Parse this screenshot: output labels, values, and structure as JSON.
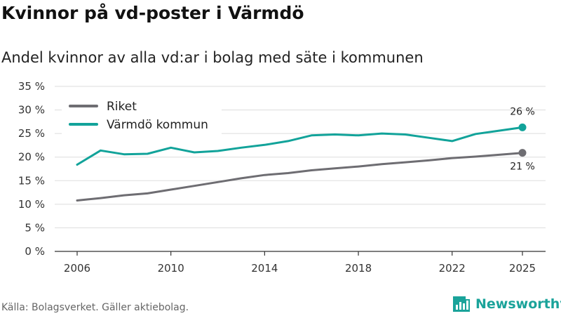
{
  "header": {
    "title": "Kvinnor på vd-poster i Värmdö",
    "subtitle": "Andel kvinnor av alla vd:ar i bolag med säte i kommunen"
  },
  "footer": {
    "source": "Källa: Bolagsverket. Gäller aktiebolag."
  },
  "brand": {
    "name": "Newsworthy"
  },
  "colors": {
    "riket": "#6e6d72",
    "varmdo": "#12a39a",
    "grid": "#dddddd",
    "axis": "#333333"
  },
  "chart_data": {
    "type": "line",
    "title": "Kvinnor på vd-poster i Värmdö",
    "subtitle": "Andel kvinnor av alla vd:ar i bolag med säte i kommunen",
    "xlabel": "",
    "ylabel": "",
    "xlim": [
      2006,
      2025
    ],
    "ylim": [
      0,
      35
    ],
    "x_ticks": [
      2006,
      2010,
      2014,
      2018,
      2022,
      2025
    ],
    "y_ticks": [
      0,
      5,
      10,
      15,
      20,
      25,
      30,
      35
    ],
    "y_tick_labels": [
      "0 %",
      "5 %",
      "10 %",
      "15 %",
      "20 %",
      "25 %",
      "30 %",
      "35 %"
    ],
    "grid": true,
    "legend_position": "top-left",
    "x": [
      2006,
      2007,
      2008,
      2009,
      2010,
      2011,
      2012,
      2013,
      2014,
      2015,
      2016,
      2017,
      2018,
      2019,
      2020,
      2021,
      2022,
      2023,
      2024,
      2025
    ],
    "series": [
      {
        "name": "Riket",
        "color": "#6e6d72",
        "values": [
          10.8,
          11.3,
          11.9,
          12.3,
          13.1,
          13.9,
          14.7,
          15.5,
          16.2,
          16.6,
          17.2,
          17.6,
          18.0,
          18.5,
          18.9,
          19.3,
          19.8,
          20.1,
          20.5,
          20.9
        ],
        "end_label": "21 %"
      },
      {
        "name": "Värmdö kommun",
        "color": "#12a39a",
        "values": [
          18.4,
          21.4,
          20.6,
          20.7,
          22.0,
          21.0,
          21.3,
          22.0,
          22.6,
          23.4,
          24.6,
          24.8,
          24.6,
          25.0,
          24.8,
          24.1,
          23.4,
          24.9,
          25.6,
          26.3
        ],
        "end_label": "26 %"
      }
    ]
  }
}
